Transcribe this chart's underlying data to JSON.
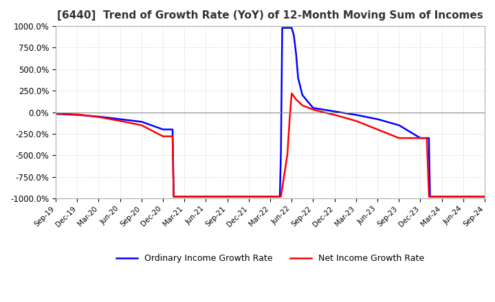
{
  "title": "[6440]  Trend of Growth Rate (YoY) of 12-Month Moving Sum of Incomes",
  "ylim": [
    -1000,
    1000
  ],
  "yticks": [
    -1000,
    -750,
    -500,
    -250,
    0,
    250,
    500,
    750,
    1000
  ],
  "ytick_labels": [
    "-1000.0%",
    "-750.0%",
    "-500.0%",
    "-250.0%",
    "0.0%",
    "250.0%",
    "500.0%",
    "750.0%",
    "1000.0%"
  ],
  "line_blue_label": "Ordinary Income Growth Rate",
  "line_red_label": "Net Income Growth Rate",
  "blue_color": "#0000FF",
  "red_color": "#FF0000",
  "background_color": "#FFFFFF",
  "grid_color": "#CCCCCC",
  "title_fontsize": 11,
  "x_dates": [
    "Sep-19",
    "Dec-19",
    "Mar-20",
    "Jun-20",
    "Sep-20",
    "Dec-20",
    "Mar-21",
    "Jun-21",
    "Sep-21",
    "Dec-21",
    "Mar-22",
    "Jun-22",
    "Sep-22",
    "Dec-22",
    "Mar-23",
    "Jun-23",
    "Sep-23",
    "Dec-23",
    "Mar-24",
    "Jun-24",
    "Sep-24"
  ],
  "ordinary_income_growth": [
    -20,
    -30,
    -50,
    -80,
    -110,
    -200,
    -980,
    -980,
    -980,
    -980,
    -980,
    980,
    200,
    50,
    10,
    -30,
    -80,
    -980,
    -980,
    -980,
    -980
  ],
  "net_income_growth": [
    -15,
    -25,
    -55,
    -100,
    -150,
    -280,
    -980,
    -980,
    -980,
    -980,
    -980,
    220,
    150,
    30,
    -30,
    -130,
    -300,
    -980,
    -980,
    -980,
    -980
  ]
}
